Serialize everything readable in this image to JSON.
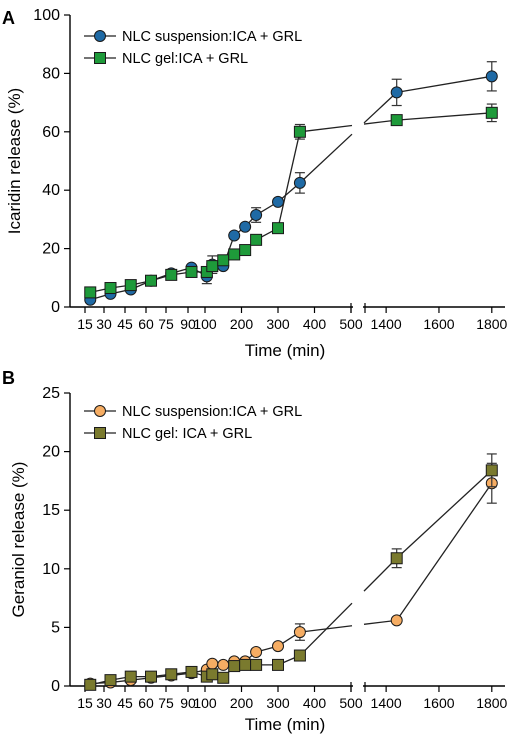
{
  "chart_data": [
    {
      "type": "line",
      "panel": "A",
      "ylabel": "Icaridin release (%)",
      "xlabel": "Time (min)",
      "ylim": [
        0,
        100
      ],
      "yticks": [
        0,
        20,
        40,
        60,
        80,
        100
      ],
      "xticks": [
        15,
        30,
        45,
        60,
        75,
        90,
        100,
        200,
        300,
        400,
        500,
        1400,
        1600,
        1800
      ],
      "x_scale": "broken",
      "legend_position": "top-left",
      "series": [
        {
          "name": "NLC suspension:ICA + GRL",
          "marker": "circle",
          "color": "#1f6aa5",
          "points": [
            {
              "x": 15,
              "y": 2.5,
              "err": 0
            },
            {
              "x": 30,
              "y": 4.5,
              "err": 0
            },
            {
              "x": 45,
              "y": 6,
              "err": 0
            },
            {
              "x": 60,
              "y": 9,
              "err": 0
            },
            {
              "x": 75,
              "y": 11.5,
              "err": 0
            },
            {
              "x": 90,
              "y": 13.5,
              "err": 0
            },
            {
              "x": 105,
              "y": 10.5,
              "err": 2.5
            },
            {
              "x": 120,
              "y": 14.5,
              "err": 3
            },
            {
              "x": 150,
              "y": 14,
              "err": 0
            },
            {
              "x": 180,
              "y": 24.5,
              "err": 0
            },
            {
              "x": 210,
              "y": 27.5,
              "err": 0
            },
            {
              "x": 240,
              "y": 31.5,
              "err": 2.5
            },
            {
              "x": 300,
              "y": 36,
              "err": 0
            },
            {
              "x": 360,
              "y": 42.5,
              "err": 3.5
            },
            {
              "x": 1440,
              "y": 73.5,
              "err": 4.5
            },
            {
              "x": 1800,
              "y": 79,
              "err": 5
            }
          ]
        },
        {
          "name": "NLC gel:ICA + GRL",
          "marker": "square",
          "color": "#1e9a3a",
          "points": [
            {
              "x": 15,
              "y": 5,
              "err": 0
            },
            {
              "x": 30,
              "y": 6.5,
              "err": 0
            },
            {
              "x": 45,
              "y": 7.5,
              "err": 0
            },
            {
              "x": 60,
              "y": 9,
              "err": 0
            },
            {
              "x": 75,
              "y": 11,
              "err": 0
            },
            {
              "x": 90,
              "y": 12,
              "err": 0
            },
            {
              "x": 105,
              "y": 12,
              "err": 0
            },
            {
              "x": 120,
              "y": 14,
              "err": 0
            },
            {
              "x": 150,
              "y": 16,
              "err": 0
            },
            {
              "x": 180,
              "y": 18,
              "err": 0
            },
            {
              "x": 210,
              "y": 19.5,
              "err": 0
            },
            {
              "x": 240,
              "y": 23,
              "err": 0
            },
            {
              "x": 300,
              "y": 27,
              "err": 0
            },
            {
              "x": 360,
              "y": 60,
              "err": 2.5
            },
            {
              "x": 1440,
              "y": 64,
              "err": 0
            },
            {
              "x": 1800,
              "y": 66.5,
              "err": 3
            }
          ]
        }
      ]
    },
    {
      "type": "line",
      "panel": "B",
      "ylabel": "Geraniol release (%)",
      "xlabel": "Time (min)",
      "ylim": [
        0,
        25
      ],
      "yticks": [
        0,
        5,
        10,
        15,
        20,
        25
      ],
      "xticks": [
        15,
        30,
        45,
        60,
        75,
        90,
        100,
        200,
        300,
        400,
        500,
        1400,
        1600,
        1800
      ],
      "x_scale": "broken",
      "legend_position": "top-left",
      "series": [
        {
          "name": "NLC suspension:ICA + GRL",
          "marker": "circle",
          "color": "#f6ad63",
          "points": [
            {
              "x": 15,
              "y": 0.2,
              "err": 0
            },
            {
              "x": 30,
              "y": 0.3,
              "err": 0
            },
            {
              "x": 45,
              "y": 0.5,
              "err": 0
            },
            {
              "x": 60,
              "y": 0.7,
              "err": 0
            },
            {
              "x": 75,
              "y": 0.9,
              "err": 0
            },
            {
              "x": 90,
              "y": 1.1,
              "err": 0
            },
            {
              "x": 105,
              "y": 1.4,
              "err": 0
            },
            {
              "x": 120,
              "y": 1.9,
              "err": 0
            },
            {
              "x": 150,
              "y": 1.8,
              "err": 0
            },
            {
              "x": 180,
              "y": 2.1,
              "err": 0
            },
            {
              "x": 210,
              "y": 2.1,
              "err": 0
            },
            {
              "x": 240,
              "y": 2.9,
              "err": 0
            },
            {
              "x": 300,
              "y": 3.4,
              "err": 0
            },
            {
              "x": 360,
              "y": 4.6,
              "err": 0.7
            },
            {
              "x": 1440,
              "y": 5.6,
              "err": 0
            },
            {
              "x": 1800,
              "y": 17.3,
              "err": 1.7
            }
          ]
        },
        {
          "name": "NLC gel: ICA + GRL",
          "marker": "square",
          "color": "#7a7a2e",
          "points": [
            {
              "x": 15,
              "y": 0.1,
              "err": 0
            },
            {
              "x": 30,
              "y": 0.5,
              "err": 0
            },
            {
              "x": 45,
              "y": 0.8,
              "err": 0
            },
            {
              "x": 60,
              "y": 0.8,
              "err": 0
            },
            {
              "x": 75,
              "y": 1,
              "err": 0
            },
            {
              "x": 90,
              "y": 1.2,
              "err": 0
            },
            {
              "x": 105,
              "y": 0.8,
              "err": 0
            },
            {
              "x": 120,
              "y": 1,
              "err": 0
            },
            {
              "x": 150,
              "y": 0.7,
              "err": 0
            },
            {
              "x": 180,
              "y": 1.7,
              "err": 0
            },
            {
              "x": 210,
              "y": 1.8,
              "err": 0
            },
            {
              "x": 240,
              "y": 1.8,
              "err": 0
            },
            {
              "x": 300,
              "y": 1.8,
              "err": 0
            },
            {
              "x": 360,
              "y": 2.6,
              "err": 0
            },
            {
              "x": 1440,
              "y": 10.9,
              "err": 0.8
            },
            {
              "x": 1800,
              "y": 18.4,
              "err": 1.4
            }
          ]
        }
      ]
    }
  ]
}
